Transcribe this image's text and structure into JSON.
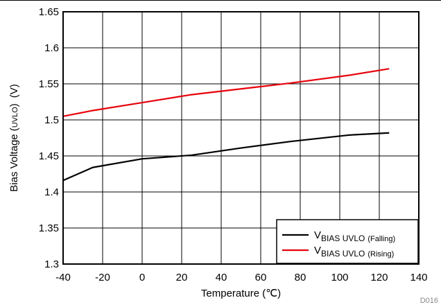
{
  "chart_data": {
    "type": "line",
    "title": "",
    "xlabel": "Temperature (℃)",
    "ylabel": {
      "main": "Bias Voltage (",
      "sub": "UVLO",
      "close": ")",
      "unit": "(V)"
    },
    "xlim": [
      -40,
      140
    ],
    "ylim": [
      1.3,
      1.65
    ],
    "xticks": [
      "-40",
      "-20",
      "0",
      "20",
      "40",
      "60",
      "80",
      "100",
      "120",
      "140"
    ],
    "yticks": [
      "1.3",
      "1.35",
      "1.4",
      "1.45",
      "1.5",
      "1.55",
      "1.6",
      "1.65"
    ],
    "grid": true,
    "legend_position": "bottom-right",
    "series": [
      {
        "name": "V BIAS UVLO (Falling)",
        "label_main": "V",
        "label_sub": "BIAS UVLO",
        "label_suffix": "(Falling)",
        "color": "#000000",
        "x": [
          -40,
          -25,
          0,
          25,
          50,
          75,
          105,
          125
        ],
        "y": [
          1.416,
          1.434,
          1.446,
          1.451,
          1.461,
          1.47,
          1.479,
          1.482
        ]
      },
      {
        "name": "V BIAS UVLO (Rising)",
        "label_main": "V",
        "label_sub": "BIAS UVLO",
        "label_suffix": "(Rising)",
        "color": "#e8000b",
        "x": [
          -40,
          -25,
          0,
          25,
          50,
          75,
          105,
          125
        ],
        "y": [
          1.505,
          1.513,
          1.524,
          1.535,
          1.543,
          1.551,
          1.562,
          1.571
        ]
      }
    ]
  },
  "figure_id": "D016"
}
